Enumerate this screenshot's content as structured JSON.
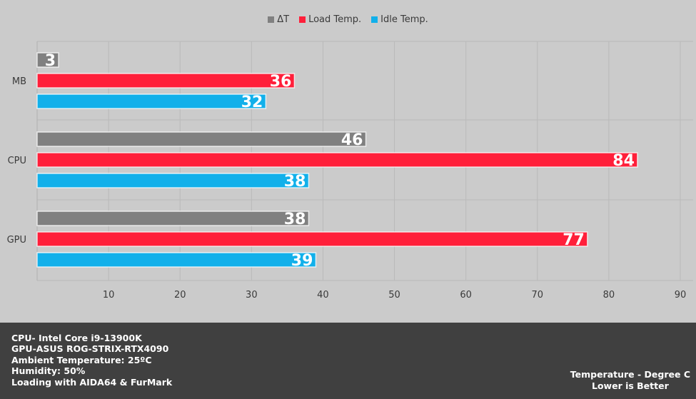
{
  "chart_data": {
    "type": "bar",
    "orientation": "horizontal",
    "categories": [
      "MB",
      "CPU",
      "GPU"
    ],
    "series": [
      {
        "name": "ΔT",
        "color": "#808080",
        "values": [
          3,
          46,
          38
        ]
      },
      {
        "name": "Load Temp.",
        "color": "#ff1f3a",
        "values": [
          36,
          84,
          77
        ]
      },
      {
        "name": "Idle Temp.",
        "color": "#12b0ea",
        "values": [
          32,
          38,
          39
        ]
      }
    ],
    "xlim": [
      0,
      90
    ],
    "xticks": [
      10,
      20,
      30,
      40,
      50,
      60,
      70,
      80,
      90
    ],
    "grid": true,
    "legend": "top-center",
    "data_labels": true
  },
  "footer": {
    "notes": [
      "CPU- Intel Core i9-13900K",
      "GPU-ASUS ROG-STRIX-RTX4090",
      "Ambient Temperature: 25ºC",
      "Humidity: 50%",
      "Loading with AIDA64  & FurMark"
    ],
    "caption_line1": "Temperature - Degree C",
    "caption_line2": "Lower is Better"
  }
}
